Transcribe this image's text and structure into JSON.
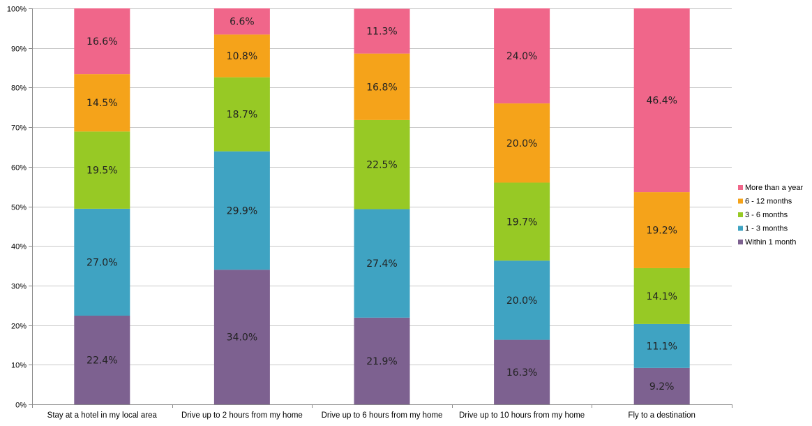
{
  "chart_data": {
    "type": "bar",
    "stacked": true,
    "percent_stacked": true,
    "categories": [
      "Stay at a hotel in my local area",
      "Drive up to 2 hours from my home",
      "Drive up to 6 hours from my home",
      "Drive up to 10 hours from my home",
      "Fly to a destination"
    ],
    "series": [
      {
        "name": "Within 1 month",
        "color": "#7d6190",
        "values": [
          22.4,
          34.0,
          21.9,
          16.3,
          9.2
        ],
        "labels": [
          "22.4%",
          "34.0%",
          "21.9%",
          "16.3%",
          "9.2%"
        ]
      },
      {
        "name": "1 - 3 months",
        "color": "#3fa3c2",
        "values": [
          27.0,
          29.9,
          27.4,
          20.0,
          11.1
        ],
        "labels": [
          "27.0%",
          "29.9%",
          "27.4%",
          "20.0%",
          "11.1%"
        ]
      },
      {
        "name": "3 - 6 months",
        "color": "#97c925",
        "values": [
          19.5,
          18.7,
          22.5,
          19.7,
          14.1
        ],
        "labels": [
          "19.5%",
          "18.7%",
          "22.5%",
          "19.7%",
          "14.1%"
        ]
      },
      {
        "name": "6 - 12 months",
        "color": "#f5a31a",
        "values": [
          14.5,
          10.8,
          16.8,
          20.0,
          19.2
        ],
        "labels": [
          "14.5%",
          "10.8%",
          "16.8%",
          "20.0%",
          "19.2%"
        ]
      },
      {
        "name": "More than a year",
        "color": "#f0668a",
        "values": [
          16.6,
          6.6,
          11.3,
          24.0,
          46.4
        ],
        "labels": [
          "16.6%",
          "6.6%",
          "11.3%",
          "24.0%",
          "46.4%"
        ]
      }
    ],
    "yticks": [
      "0%",
      "10%",
      "20%",
      "30%",
      "40%",
      "50%",
      "60%",
      "70%",
      "80%",
      "90%",
      "100%"
    ],
    "ylim": [
      0,
      100
    ],
    "grid": true,
    "legend_position": "right",
    "legend_order": [
      "More than a year",
      "6 - 12 months",
      "3 - 6 months",
      "1 - 3 months",
      "Within 1 month"
    ],
    "title": "",
    "xlabel": "",
    "ylabel": ""
  },
  "colors": {
    "grid": "#c8c8c8",
    "axis": "#8a8a8a"
  }
}
